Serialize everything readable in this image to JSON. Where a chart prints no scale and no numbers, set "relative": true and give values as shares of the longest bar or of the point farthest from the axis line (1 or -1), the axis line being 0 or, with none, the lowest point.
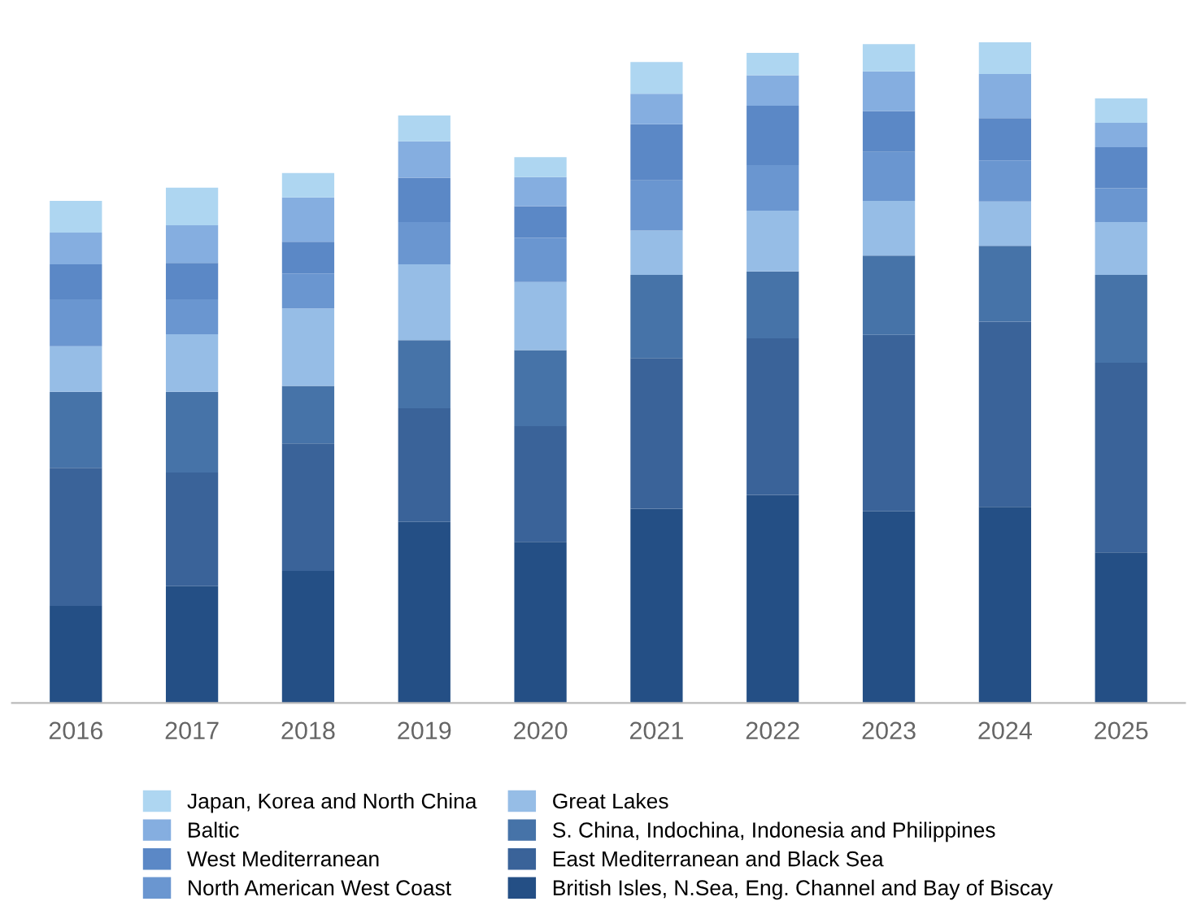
{
  "chart_data": {
    "type": "bar",
    "stacked": true,
    "relative": true,
    "tick_labels": "x",
    "grid": false,
    "legend": "bottom",
    "categories": [
      "2016",
      "2017",
      "2018",
      "2019",
      "2020",
      "2021",
      "2022",
      "2023",
      "2024",
      "2025"
    ],
    "series": [
      {
        "name": "British Isles, N.Sea, Eng. Channel and Bay of Biscay",
        "color": "#244f85",
        "values": [
          0.147,
          0.177,
          0.2,
          0.274,
          0.244,
          0.294,
          0.315,
          0.29,
          0.297,
          0.228
        ]
      },
      {
        "name": "East Mediterranean and Black Sea",
        "color": "#3a6399",
        "values": [
          0.209,
          0.172,
          0.193,
          0.172,
          0.175,
          0.228,
          0.237,
          0.267,
          0.28,
          0.287
        ]
      },
      {
        "name": "S. China, Indochina, Indonesia and Philippines",
        "color": "#4673a8",
        "values": [
          0.115,
          0.122,
          0.087,
          0.103,
          0.115,
          0.126,
          0.101,
          0.12,
          0.115,
          0.133
        ]
      },
      {
        "name": "Great Lakes",
        "color": "#96bde6",
        "values": [
          0.069,
          0.087,
          0.117,
          0.115,
          0.103,
          0.067,
          0.092,
          0.083,
          0.067,
          0.08
        ]
      },
      {
        "name": "North American West Coast",
        "color": "#6a96d0",
        "values": [
          0.071,
          0.053,
          0.053,
          0.064,
          0.067,
          0.076,
          0.069,
          0.074,
          0.062,
          0.051
        ]
      },
      {
        "name": "West Mediterranean",
        "color": "#5b88c6",
        "values": [
          0.053,
          0.055,
          0.048,
          0.067,
          0.048,
          0.085,
          0.09,
          0.062,
          0.064,
          0.062
        ]
      },
      {
        "name": "Baltic",
        "color": "#85aee0",
        "values": [
          0.048,
          0.057,
          0.067,
          0.055,
          0.044,
          0.046,
          0.046,
          0.06,
          0.067,
          0.037
        ]
      },
      {
        "name": "Japan, Korea and North China",
        "color": "#aed6f1",
        "values": [
          0.048,
          0.057,
          0.037,
          0.039,
          0.03,
          0.048,
          0.034,
          0.041,
          0.048,
          0.037
        ]
      }
    ]
  }
}
